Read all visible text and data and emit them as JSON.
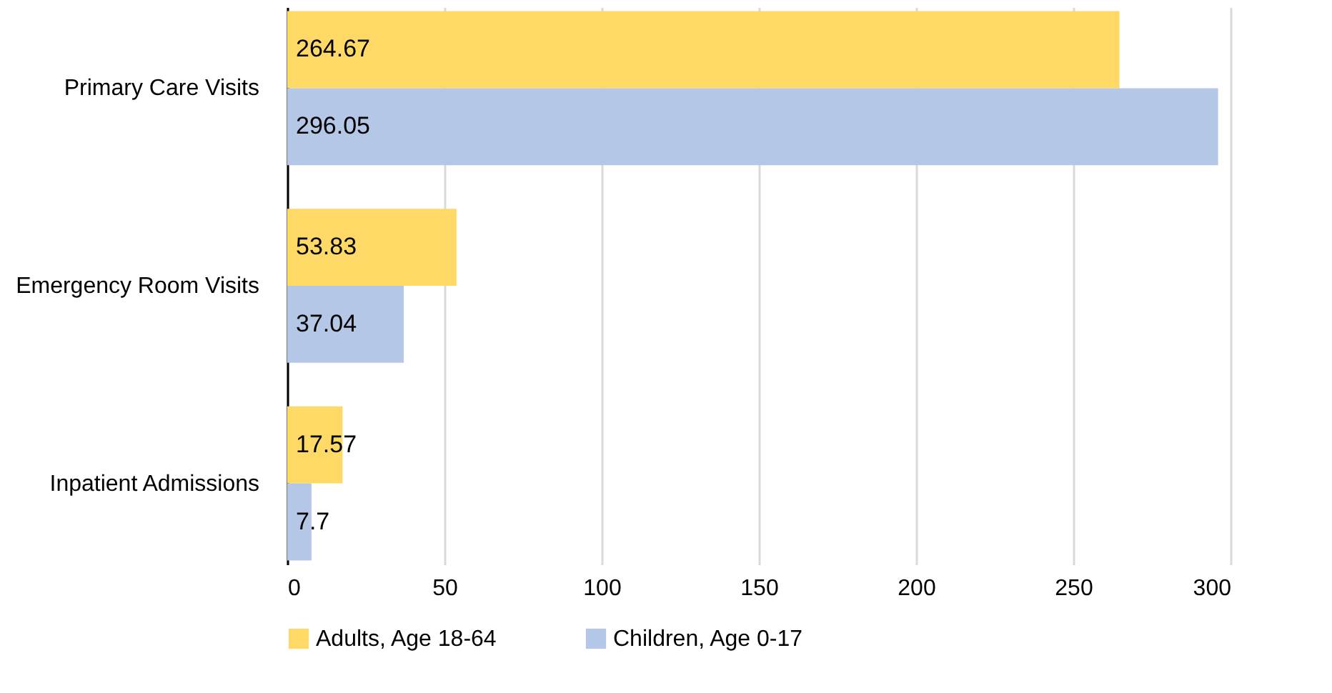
{
  "chart_data": {
    "type": "bar",
    "orientation": "horizontal",
    "categories": [
      "Primary Care Visits",
      "Emergency Room Visits",
      "Inpatient Admissions"
    ],
    "series": [
      {
        "name": "Adults, Age 18-64",
        "color": "#ffd966",
        "values": [
          264.67,
          53.83,
          17.57
        ]
      },
      {
        "name": "Children, Age 0-17",
        "color": "#b4c7e7",
        "values": [
          296.05,
          37.04,
          7.7
        ]
      }
    ],
    "xlim": [
      0,
      300
    ],
    "xticks": [
      0,
      50,
      100,
      150,
      200,
      250,
      300
    ],
    "grid": "x",
    "legend": "bottom",
    "data_labels": true
  }
}
